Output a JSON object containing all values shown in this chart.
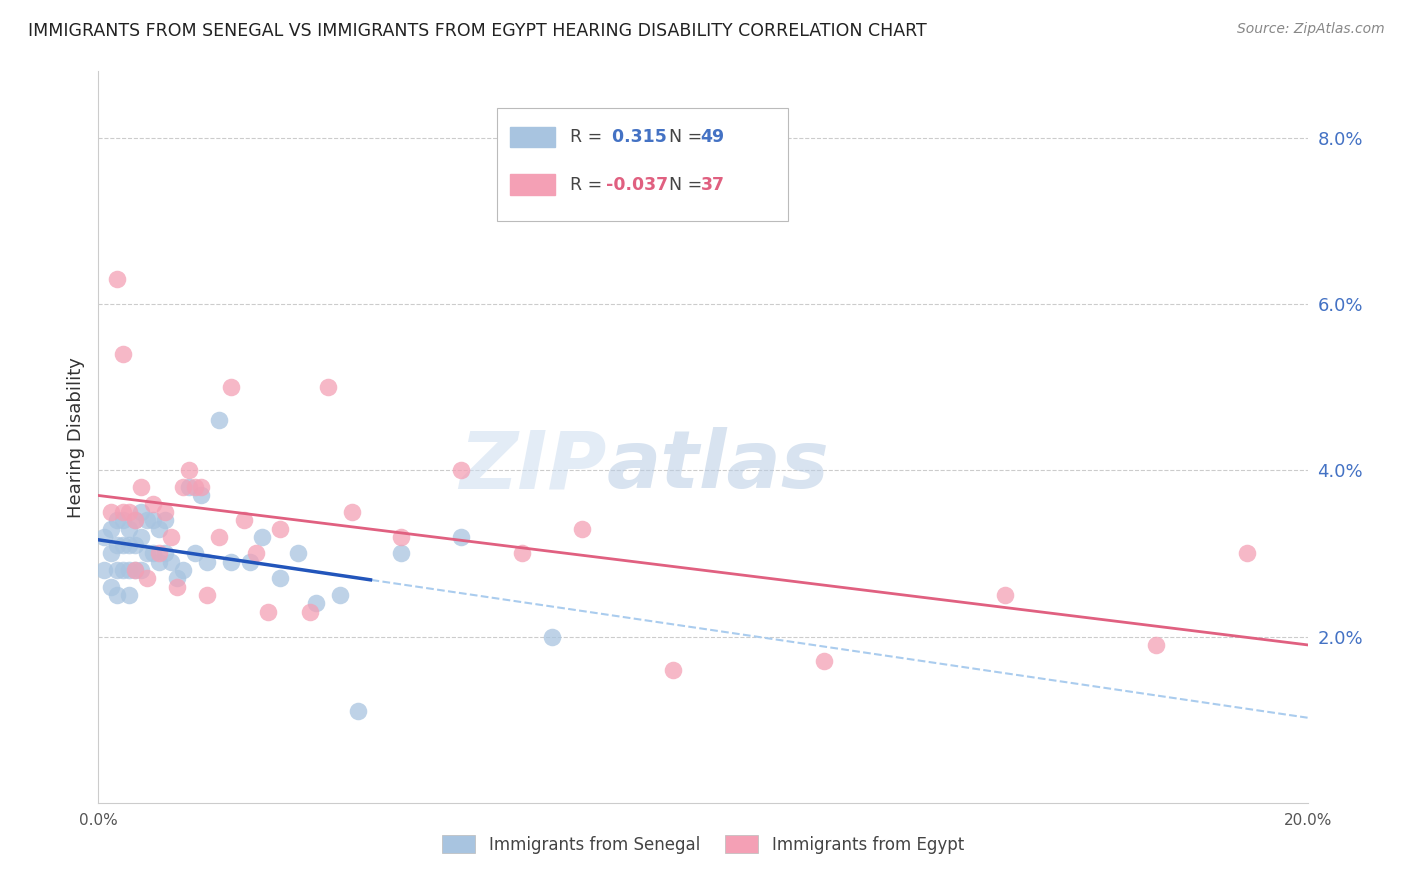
{
  "title": "IMMIGRANTS FROM SENEGAL VS IMMIGRANTS FROM EGYPT HEARING DISABILITY CORRELATION CHART",
  "source": "Source: ZipAtlas.com",
  "ylabel": "Hearing Disability",
  "x_min": 0.0,
  "x_max": 0.2,
  "y_min": 0.0,
  "y_max": 0.088,
  "x_ticks": [
    0.0,
    0.04,
    0.08,
    0.12,
    0.16,
    0.2
  ],
  "x_tick_labels": [
    "0.0%",
    "",
    "",
    "",
    "",
    "20.0%"
  ],
  "y_ticks_right": [
    0.02,
    0.04,
    0.06,
    0.08
  ],
  "y_tick_labels_right": [
    "2.0%",
    "4.0%",
    "6.0%",
    "8.0%"
  ],
  "senegal_color": "#a8c4e0",
  "egypt_color": "#f4a0b5",
  "senegal_line_color": "#2255bb",
  "egypt_line_color": "#e06080",
  "dashed_line_color": "#aaccee",
  "watermark_zip": "ZIP",
  "watermark_atlas": "atlas",
  "senegal_points_x": [
    0.001,
    0.001,
    0.002,
    0.002,
    0.002,
    0.003,
    0.003,
    0.003,
    0.003,
    0.004,
    0.004,
    0.004,
    0.005,
    0.005,
    0.005,
    0.005,
    0.006,
    0.006,
    0.006,
    0.007,
    0.007,
    0.007,
    0.008,
    0.008,
    0.009,
    0.009,
    0.01,
    0.01,
    0.011,
    0.011,
    0.012,
    0.013,
    0.014,
    0.015,
    0.016,
    0.017,
    0.018,
    0.02,
    0.022,
    0.025,
    0.027,
    0.03,
    0.033,
    0.036,
    0.04,
    0.043,
    0.05,
    0.06,
    0.075
  ],
  "senegal_points_y": [
    0.032,
    0.028,
    0.033,
    0.03,
    0.026,
    0.034,
    0.031,
    0.028,
    0.025,
    0.034,
    0.031,
    0.028,
    0.033,
    0.031,
    0.028,
    0.025,
    0.034,
    0.031,
    0.028,
    0.035,
    0.032,
    0.028,
    0.034,
    0.03,
    0.034,
    0.03,
    0.033,
    0.029,
    0.034,
    0.03,
    0.029,
    0.027,
    0.028,
    0.038,
    0.03,
    0.037,
    0.029,
    0.046,
    0.029,
    0.029,
    0.032,
    0.027,
    0.03,
    0.024,
    0.025,
    0.011,
    0.03,
    0.032,
    0.02
  ],
  "egypt_points_x": [
    0.002,
    0.003,
    0.004,
    0.004,
    0.005,
    0.006,
    0.006,
    0.007,
    0.008,
    0.009,
    0.01,
    0.011,
    0.012,
    0.013,
    0.014,
    0.015,
    0.016,
    0.017,
    0.018,
    0.02,
    0.022,
    0.024,
    0.026,
    0.028,
    0.03,
    0.035,
    0.038,
    0.042,
    0.05,
    0.06,
    0.07,
    0.08,
    0.095,
    0.12,
    0.15,
    0.175,
    0.19
  ],
  "egypt_points_y": [
    0.035,
    0.063,
    0.054,
    0.035,
    0.035,
    0.028,
    0.034,
    0.038,
    0.027,
    0.036,
    0.03,
    0.035,
    0.032,
    0.026,
    0.038,
    0.04,
    0.038,
    0.038,
    0.025,
    0.032,
    0.05,
    0.034,
    0.03,
    0.023,
    0.033,
    0.023,
    0.05,
    0.035,
    0.032,
    0.04,
    0.03,
    0.033,
    0.016,
    0.017,
    0.025,
    0.019,
    0.03
  ],
  "legend_r1_label": "R = ",
  "legend_r1_value": " 0.315",
  "legend_n1_label": "N = ",
  "legend_n1_value": "49",
  "legend_r2_label": "R = ",
  "legend_r2_value": "-0.037",
  "legend_n2_label": "N = ",
  "legend_n2_value": "37",
  "bottom_legend_senegal": "Immigrants from Senegal",
  "bottom_legend_egypt": "Immigrants from Egypt"
}
